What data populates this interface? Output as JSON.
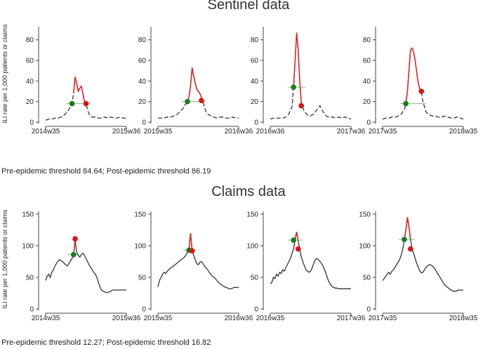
{
  "sentinel": {
    "title": "Sentinel data",
    "threshold_note": "Pre-epidemic threshold 84.64; Post-epidemic threshold 86.19",
    "ylabel": "ILI rate per 1,000 patients or claims"
  },
  "claims": {
    "title": "Claims data",
    "threshold_note": "Pre-epidemic threshold 12.27; Post-epidemic threshold 16.82",
    "ylabel": "ILI rate per 1,000 patients or claims"
  },
  "colors": {
    "baseline_line": "#333333",
    "epidemic_line": "#e02020",
    "onset_marker": "#1a7a1a",
    "end_marker": "#e01010",
    "threshold_line": "#7fbf7f"
  },
  "chart_data": [
    {
      "type": "line",
      "group": "sentinel",
      "line_style": "dashed",
      "ylim": [
        0,
        90
      ],
      "yticks": [
        0,
        20,
        40,
        60,
        80
      ],
      "xtick_labels": [
        "2014w35",
        "2015w36"
      ],
      "x": [
        0,
        2,
        4,
        6,
        8,
        10,
        12,
        14,
        16,
        17,
        18,
        19,
        20,
        21,
        22,
        23,
        24,
        25,
        26,
        27,
        28,
        29,
        30,
        32,
        34,
        36,
        38,
        40,
        42,
        44,
        46,
        48,
        50,
        52
      ],
      "y": [
        2,
        3,
        3,
        4,
        4,
        5,
        7,
        10,
        15,
        18,
        28,
        44,
        38,
        30,
        33,
        35,
        28,
        20,
        18,
        12,
        8,
        6,
        5,
        5,
        4,
        4,
        5,
        4,
        5,
        4,
        4,
        5,
        4,
        4
      ],
      "epidemic_range": [
        18,
        26
      ],
      "onset": {
        "x": 17,
        "y": 18
      },
      "end": {
        "x": 26,
        "y": 18
      }
    },
    {
      "type": "line",
      "group": "sentinel",
      "line_style": "dashed",
      "ylim": [
        0,
        90
      ],
      "yticks": [
        0,
        20,
        40,
        60,
        80
      ],
      "xtick_labels": [
        "2015w35",
        "2016w36"
      ],
      "x": [
        0,
        2,
        4,
        6,
        8,
        10,
        12,
        14,
        16,
        18,
        20,
        21,
        22,
        23,
        24,
        25,
        26,
        27,
        28,
        29,
        30,
        31,
        32,
        34,
        36,
        38,
        40,
        42,
        44,
        46,
        48,
        50,
        52
      ],
      "y": [
        4,
        4,
        4,
        5,
        5,
        6,
        7,
        10,
        13,
        18,
        24,
        35,
        53,
        45,
        38,
        32,
        30,
        28,
        24,
        20,
        15,
        10,
        8,
        6,
        5,
        4,
        5,
        5,
        4,
        4,
        5,
        4,
        4
      ],
      "epidemic_range": [
        20,
        28
      ],
      "onset": {
        "x": 19,
        "y": 20
      },
      "end": {
        "x": 28,
        "y": 21
      }
    },
    {
      "type": "line",
      "group": "sentinel",
      "line_style": "dashed",
      "ylim": [
        0,
        90
      ],
      "yticks": [
        0,
        20,
        40,
        60,
        80
      ],
      "xtick_labels": [
        "2016w36",
        "2017w36"
      ],
      "x": [
        0,
        2,
        4,
        6,
        8,
        10,
        12,
        14,
        15,
        16,
        17,
        18,
        19,
        20,
        21,
        22,
        24,
        26,
        28,
        30,
        32,
        34,
        36,
        38,
        40,
        42,
        44,
        46,
        48,
        50,
        52
      ],
      "y": [
        3,
        4,
        4,
        4,
        4,
        5,
        8,
        15,
        34,
        60,
        87,
        70,
        40,
        18,
        14,
        10,
        7,
        6,
        8,
        12,
        16,
        10,
        6,
        5,
        5,
        4,
        5,
        4,
        5,
        4,
        3
      ],
      "epidemic_range": [
        15,
        20
      ],
      "onset": {
        "x": 15,
        "y": 34
      },
      "end": {
        "x": 20,
        "y": 16
      }
    },
    {
      "type": "line",
      "group": "sentinel",
      "line_style": "dashed",
      "ylim": [
        0,
        90
      ],
      "yticks": [
        0,
        20,
        40,
        60,
        80
      ],
      "xtick_labels": [
        "2017w35",
        "2018w35"
      ],
      "x": [
        0,
        2,
        4,
        6,
        8,
        10,
        12,
        14,
        15,
        16,
        17,
        18,
        19,
        20,
        21,
        22,
        23,
        24,
        25,
        26,
        28,
        30,
        32,
        34,
        36,
        38,
        40,
        42,
        44,
        46,
        48,
        50,
        52
      ],
      "y": [
        3,
        4,
        4,
        5,
        5,
        6,
        8,
        12,
        18,
        30,
        50,
        70,
        72,
        68,
        60,
        48,
        38,
        32,
        30,
        20,
        10,
        7,
        6,
        6,
        5,
        5,
        6,
        5,
        4,
        4,
        5,
        4,
        3
      ],
      "epidemic_range": [
        15,
        25
      ],
      "onset": {
        "x": 15,
        "y": 18
      },
      "end": {
        "x": 25,
        "y": 30
      }
    },
    {
      "type": "line",
      "group": "claims",
      "line_style": "solid",
      "ylim": [
        0,
        150
      ],
      "yticks": [
        0,
        50,
        100,
        150
      ],
      "xtick_labels": [
        "2014w35",
        "2015w36"
      ],
      "x": [
        0,
        1,
        2,
        3,
        4,
        5,
        6,
        7,
        8,
        9,
        10,
        11,
        12,
        13,
        14,
        15,
        16,
        17,
        18,
        19,
        20,
        21,
        22,
        23,
        24,
        25,
        26,
        27,
        28,
        29,
        30,
        31,
        32,
        33,
        34,
        35,
        36,
        37,
        38,
        39,
        40,
        41,
        42,
        43,
        44,
        45,
        46,
        47,
        48,
        49,
        50,
        51,
        52
      ],
      "y": [
        45,
        52,
        55,
        50,
        58,
        62,
        68,
        72,
        76,
        78,
        76,
        75,
        72,
        70,
        68,
        72,
        76,
        80,
        85,
        110,
        90,
        85,
        82,
        86,
        88,
        85,
        80,
        75,
        70,
        66,
        62,
        58,
        55,
        50,
        42,
        35,
        30,
        28,
        27,
        26,
        26,
        27,
        28,
        30,
        30,
        30,
        30,
        30,
        30,
        30,
        30,
        30,
        30
      ],
      "epidemic_range": [
        18,
        19
      ],
      "onset": {
        "x": 18,
        "y": 86
      },
      "end": {
        "x": 19,
        "y": 111
      }
    },
    {
      "type": "line",
      "group": "claims",
      "line_style": "solid",
      "ylim": [
        0,
        150
      ],
      "yticks": [
        0,
        50,
        100,
        150
      ],
      "xtick_labels": [
        "2015w35",
        "2016w36"
      ],
      "x": [
        0,
        1,
        2,
        3,
        4,
        5,
        6,
        7,
        8,
        9,
        10,
        11,
        12,
        13,
        14,
        15,
        16,
        17,
        18,
        19,
        20,
        21,
        22,
        23,
        24,
        25,
        26,
        27,
        28,
        29,
        30,
        31,
        32,
        33,
        34,
        35,
        36,
        37,
        38,
        39,
        40,
        41,
        42,
        43,
        44,
        45,
        46,
        47,
        48,
        49,
        50,
        51,
        52
      ],
      "y": [
        35,
        45,
        50,
        55,
        58,
        56,
        60,
        62,
        65,
        66,
        68,
        70,
        72,
        74,
        76,
        78,
        80,
        82,
        85,
        90,
        93,
        120,
        92,
        85,
        78,
        72,
        70,
        74,
        75,
        72,
        68,
        65,
        62,
        58,
        55,
        52,
        50,
        48,
        45,
        42,
        40,
        38,
        36,
        35,
        34,
        33,
        32,
        32,
        33,
        34,
        34,
        34,
        34
      ],
      "epidemic_range": [
        20,
        22
      ],
      "onset": {
        "x": 20,
        "y": 93
      },
      "end": {
        "x": 22,
        "y": 92
      }
    },
    {
      "type": "line",
      "group": "claims",
      "line_style": "solid",
      "ylim": [
        0,
        150
      ],
      "yticks": [
        0,
        50,
        100,
        150
      ],
      "xtick_labels": [
        "2016w35",
        "2017w36"
      ],
      "x": [
        0,
        1,
        2,
        3,
        4,
        5,
        6,
        7,
        8,
        9,
        10,
        11,
        12,
        13,
        14,
        15,
        16,
        17,
        18,
        19,
        20,
        21,
        22,
        23,
        24,
        25,
        26,
        27,
        28,
        29,
        30,
        31,
        32,
        33,
        34,
        35,
        36,
        37,
        38,
        39,
        40,
        41,
        42,
        43,
        44,
        45,
        46,
        47,
        48,
        49,
        50,
        51,
        52
      ],
      "y": [
        40,
        42,
        50,
        48,
        55,
        52,
        58,
        56,
        62,
        60,
        65,
        70,
        75,
        80,
        88,
        95,
        110,
        122,
        108,
        95,
        82,
        75,
        68,
        62,
        60,
        58,
        60,
        65,
        72,
        78,
        80,
        78,
        75,
        72,
        68,
        62,
        55,
        48,
        42,
        38,
        35,
        34,
        33,
        33,
        32,
        32,
        32,
        32,
        32,
        32,
        32,
        32,
        32
      ],
      "epidemic_range": [
        15,
        18
      ],
      "onset": {
        "x": 15,
        "y": 109
      },
      "end": {
        "x": 18,
        "y": 95
      }
    },
    {
      "type": "line",
      "group": "claims",
      "line_style": "solid",
      "ylim": [
        0,
        150
      ],
      "yticks": [
        0,
        50,
        100,
        150
      ],
      "xtick_labels": [
        "2017w35",
        "2018w35"
      ],
      "x": [
        0,
        1,
        2,
        3,
        4,
        5,
        6,
        7,
        8,
        9,
        10,
        11,
        12,
        13,
        14,
        15,
        16,
        17,
        18,
        19,
        20,
        21,
        22,
        23,
        24,
        25,
        26,
        27,
        28,
        29,
        30,
        31,
        32,
        33,
        34,
        35,
        36,
        37,
        38,
        39,
        40,
        41,
        42,
        43,
        44,
        45,
        46,
        47,
        48,
        49,
        50,
        51,
        52
      ],
      "y": [
        45,
        48,
        52,
        55,
        58,
        55,
        60,
        62,
        66,
        70,
        74,
        78,
        85,
        95,
        110,
        125,
        145,
        130,
        110,
        95,
        88,
        80,
        72,
        66,
        60,
        57,
        58,
        62,
        66,
        68,
        70,
        70,
        68,
        66,
        62,
        58,
        54,
        50,
        46,
        42,
        38,
        36,
        34,
        32,
        30,
        29,
        28,
        28,
        29,
        30,
        30,
        30,
        30
      ],
      "epidemic_range": [
        14,
        18
      ],
      "onset": {
        "x": 14,
        "y": 110
      },
      "end": {
        "x": 18,
        "y": 95
      }
    }
  ]
}
